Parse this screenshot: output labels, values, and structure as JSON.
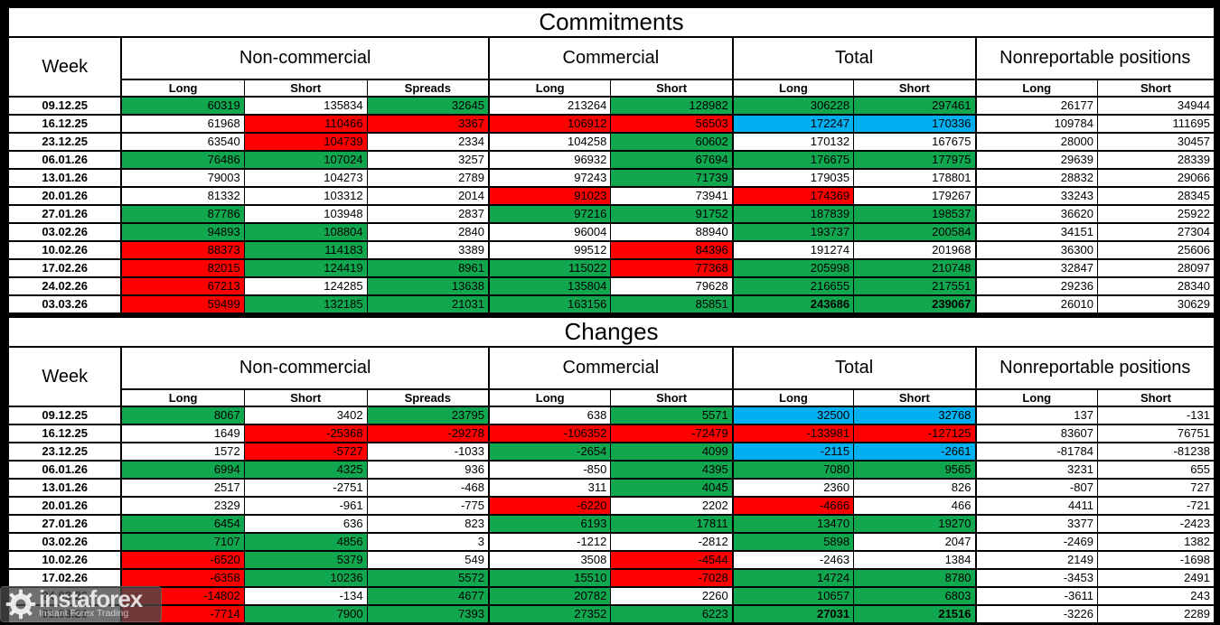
{
  "colors": {
    "g": "#10a74f",
    "r": "#fe0000",
    "b": "#00b0f0",
    "w": "#ffffff"
  },
  "watermark": {
    "brand": "instaforex",
    "tagline": "Instant Forex Trading",
    "icon": "gear-icon"
  },
  "tables": [
    {
      "title": "Commitments",
      "week_header": "Week",
      "groups": [
        {
          "label": "Non-commercial",
          "cols": [
            "Long",
            "Short",
            "Spreads"
          ]
        },
        {
          "label": "Commercial",
          "cols": [
            "Long",
            "Short"
          ]
        },
        {
          "label": "Total",
          "cols": [
            "Long",
            "Short"
          ]
        },
        {
          "label": "Nonreportable positions",
          "cols": [
            "Long",
            "Short"
          ]
        }
      ],
      "rows": [
        {
          "week": "09.12.25",
          "cells": [
            [
              "60319",
              "g"
            ],
            [
              "135834",
              "w"
            ],
            [
              "32645",
              "g"
            ],
            [
              "213264",
              "w"
            ],
            [
              "128982",
              "g"
            ],
            [
              "306228",
              "g"
            ],
            [
              "297461",
              "g"
            ],
            [
              "26177",
              "w"
            ],
            [
              "34944",
              "w"
            ]
          ]
        },
        {
          "week": "16.12.25",
          "cells": [
            [
              "61968",
              "w"
            ],
            [
              "110466",
              "r"
            ],
            [
              "3367",
              "r"
            ],
            [
              "106912",
              "r"
            ],
            [
              "56503",
              "r"
            ],
            [
              "172247",
              "b"
            ],
            [
              "170336",
              "b"
            ],
            [
              "109784",
              "w"
            ],
            [
              "111695",
              "w"
            ]
          ]
        },
        {
          "week": "23.12.25",
          "cells": [
            [
              "63540",
              "w"
            ],
            [
              "104739",
              "r"
            ],
            [
              "2334",
              "w"
            ],
            [
              "104258",
              "w"
            ],
            [
              "60602",
              "g"
            ],
            [
              "170132",
              "w"
            ],
            [
              "167675",
              "w"
            ],
            [
              "28000",
              "w"
            ],
            [
              "30457",
              "w"
            ]
          ]
        },
        {
          "week": "06.01.26",
          "cells": [
            [
              "76486",
              "g"
            ],
            [
              "107024",
              "g"
            ],
            [
              "3257",
              "w"
            ],
            [
              "96932",
              "w"
            ],
            [
              "67694",
              "g"
            ],
            [
              "176675",
              "g"
            ],
            [
              "177975",
              "g"
            ],
            [
              "29639",
              "w"
            ],
            [
              "28339",
              "w"
            ]
          ]
        },
        {
          "week": "13.01.26",
          "cells": [
            [
              "79003",
              "w"
            ],
            [
              "104273",
              "w"
            ],
            [
              "2789",
              "w"
            ],
            [
              "97243",
              "w"
            ],
            [
              "71739",
              "g"
            ],
            [
              "179035",
              "w"
            ],
            [
              "178801",
              "w"
            ],
            [
              "28832",
              "w"
            ],
            [
              "29066",
              "w"
            ]
          ]
        },
        {
          "week": "20.01.26",
          "cells": [
            [
              "81332",
              "w"
            ],
            [
              "103312",
              "w"
            ],
            [
              "2014",
              "w"
            ],
            [
              "91023",
              "r"
            ],
            [
              "73941",
              "w"
            ],
            [
              "174369",
              "r"
            ],
            [
              "179267",
              "w"
            ],
            [
              "33243",
              "w"
            ],
            [
              "28345",
              "w"
            ]
          ]
        },
        {
          "week": "27.01.26",
          "cells": [
            [
              "87786",
              "g"
            ],
            [
              "103948",
              "w"
            ],
            [
              "2837",
              "w"
            ],
            [
              "97216",
              "g"
            ],
            [
              "91752",
              "g"
            ],
            [
              "187839",
              "g"
            ],
            [
              "198537",
              "g"
            ],
            [
              "36620",
              "w"
            ],
            [
              "25922",
              "w"
            ]
          ]
        },
        {
          "week": "03.02.26",
          "cells": [
            [
              "94893",
              "g"
            ],
            [
              "108804",
              "g"
            ],
            [
              "2840",
              "w"
            ],
            [
              "96004",
              "w"
            ],
            [
              "88940",
              "w"
            ],
            [
              "193737",
              "g"
            ],
            [
              "200584",
              "g"
            ],
            [
              "34151",
              "w"
            ],
            [
              "27304",
              "w"
            ]
          ]
        },
        {
          "week": "10.02.26",
          "cells": [
            [
              "88373",
              "r"
            ],
            [
              "114183",
              "g"
            ],
            [
              "3389",
              "w"
            ],
            [
              "99512",
              "w"
            ],
            [
              "84396",
              "r"
            ],
            [
              "191274",
              "w"
            ],
            [
              "201968",
              "w"
            ],
            [
              "36300",
              "w"
            ],
            [
              "25606",
              "w"
            ]
          ]
        },
        {
          "week": "17.02.26",
          "cells": [
            [
              "82015",
              "r"
            ],
            [
              "124419",
              "g"
            ],
            [
              "8961",
              "g"
            ],
            [
              "115022",
              "g"
            ],
            [
              "77368",
              "r"
            ],
            [
              "205998",
              "g"
            ],
            [
              "210748",
              "g"
            ],
            [
              "32847",
              "w"
            ],
            [
              "28097",
              "w"
            ]
          ]
        },
        {
          "week": "24.02.26",
          "cells": [
            [
              "67213",
              "r"
            ],
            [
              "124285",
              "w"
            ],
            [
              "13638",
              "g"
            ],
            [
              "135804",
              "g"
            ],
            [
              "79628",
              "w"
            ],
            [
              "216655",
              "g"
            ],
            [
              "217551",
              "g"
            ],
            [
              "29236",
              "w"
            ],
            [
              "28340",
              "w"
            ]
          ]
        },
        {
          "week": "03.03.26",
          "cells": [
            [
              "59499",
              "r"
            ],
            [
              "132185",
              "g"
            ],
            [
              "21031",
              "g"
            ],
            [
              "163156",
              "g"
            ],
            [
              "85851",
              "g"
            ],
            [
              "243686",
              "g",
              true
            ],
            [
              "239067",
              "g",
              true
            ],
            [
              "26010",
              "w"
            ],
            [
              "30629",
              "w"
            ]
          ]
        }
      ]
    },
    {
      "title": "Changes",
      "week_header": "Week",
      "groups": [
        {
          "label": "Non-commercial",
          "cols": [
            "Long",
            "Short",
            "Spreads"
          ]
        },
        {
          "label": "Commercial",
          "cols": [
            "Long",
            "Short"
          ]
        },
        {
          "label": "Total",
          "cols": [
            "Long",
            "Short"
          ]
        },
        {
          "label": "Nonreportable positions",
          "cols": [
            "Long",
            "Short"
          ]
        }
      ],
      "rows": [
        {
          "week": "09.12.25",
          "cells": [
            [
              "8067",
              "g"
            ],
            [
              "3402",
              "w"
            ],
            [
              "23795",
              "g"
            ],
            [
              "638",
              "w"
            ],
            [
              "5571",
              "g"
            ],
            [
              "32500",
              "b"
            ],
            [
              "32768",
              "b"
            ],
            [
              "137",
              "w"
            ],
            [
              "-131",
              "w"
            ]
          ]
        },
        {
          "week": "16.12.25",
          "cells": [
            [
              "1649",
              "w"
            ],
            [
              "-25368",
              "r"
            ],
            [
              "-29278",
              "r"
            ],
            [
              "-106352",
              "r"
            ],
            [
              "-72479",
              "r"
            ],
            [
              "-133981",
              "r"
            ],
            [
              "-127125",
              "r"
            ],
            [
              "83607",
              "w"
            ],
            [
              "76751",
              "w"
            ]
          ]
        },
        {
          "week": "23.12.25",
          "cells": [
            [
              "1572",
              "w"
            ],
            [
              "-5727",
              "r"
            ],
            [
              "-1033",
              "w"
            ],
            [
              "-2654",
              "g"
            ],
            [
              "4099",
              "g"
            ],
            [
              "-2115",
              "b"
            ],
            [
              "-2661",
              "b"
            ],
            [
              "-81784",
              "w"
            ],
            [
              "-81238",
              "w"
            ]
          ]
        },
        {
          "week": "06.01.26",
          "cells": [
            [
              "6994",
              "g"
            ],
            [
              "4325",
              "g"
            ],
            [
              "936",
              "w"
            ],
            [
              "-850",
              "w"
            ],
            [
              "4395",
              "g"
            ],
            [
              "7080",
              "g"
            ],
            [
              "9565",
              "g"
            ],
            [
              "3231",
              "w"
            ],
            [
              "655",
              "w"
            ]
          ]
        },
        {
          "week": "13.01.26",
          "cells": [
            [
              "2517",
              "w"
            ],
            [
              "-2751",
              "w"
            ],
            [
              "-468",
              "w"
            ],
            [
              "311",
              "w"
            ],
            [
              "4045",
              "g"
            ],
            [
              "2360",
              "w"
            ],
            [
              "826",
              "w"
            ],
            [
              "-807",
              "w"
            ],
            [
              "727",
              "w"
            ]
          ]
        },
        {
          "week": "20.01.26",
          "cells": [
            [
              "2329",
              "w"
            ],
            [
              "-961",
              "w"
            ],
            [
              "-775",
              "w"
            ],
            [
              "-6220",
              "r"
            ],
            [
              "2202",
              "w"
            ],
            [
              "-4666",
              "r"
            ],
            [
              "466",
              "w"
            ],
            [
              "4411",
              "w"
            ],
            [
              "-721",
              "w"
            ]
          ]
        },
        {
          "week": "27.01.26",
          "cells": [
            [
              "6454",
              "g"
            ],
            [
              "636",
              "w"
            ],
            [
              "823",
              "w"
            ],
            [
              "6193",
              "g"
            ],
            [
              "17811",
              "g"
            ],
            [
              "13470",
              "g"
            ],
            [
              "19270",
              "g"
            ],
            [
              "3377",
              "w"
            ],
            [
              "-2423",
              "w"
            ]
          ]
        },
        {
          "week": "03.02.26",
          "cells": [
            [
              "7107",
              "g"
            ],
            [
              "4856",
              "g"
            ],
            [
              "3",
              "w"
            ],
            [
              "-1212",
              "w"
            ],
            [
              "-2812",
              "w"
            ],
            [
              "5898",
              "g"
            ],
            [
              "2047",
              "w"
            ],
            [
              "-2469",
              "w"
            ],
            [
              "1382",
              "w"
            ]
          ]
        },
        {
          "week": "10.02.26",
          "cells": [
            [
              "-6520",
              "r"
            ],
            [
              "5379",
              "g"
            ],
            [
              "549",
              "w"
            ],
            [
              "3508",
              "w"
            ],
            [
              "-4544",
              "r"
            ],
            [
              "-2463",
              "w"
            ],
            [
              "1384",
              "w"
            ],
            [
              "2149",
              "w"
            ],
            [
              "-1698",
              "w"
            ]
          ]
        },
        {
          "week": "17.02.26",
          "cells": [
            [
              "-6358",
              "r"
            ],
            [
              "10236",
              "g"
            ],
            [
              "5572",
              "g"
            ],
            [
              "15510",
              "g"
            ],
            [
              "-7028",
              "r"
            ],
            [
              "14724",
              "g"
            ],
            [
              "8780",
              "g"
            ],
            [
              "-3453",
              "w"
            ],
            [
              "2491",
              "w"
            ]
          ]
        },
        {
          "week": "24.02.26",
          "cells": [
            [
              "-14802",
              "r"
            ],
            [
              "-134",
              "w"
            ],
            [
              "4677",
              "g"
            ],
            [
              "20782",
              "g"
            ],
            [
              "2260",
              "w"
            ],
            [
              "10657",
              "g"
            ],
            [
              "6803",
              "g"
            ],
            [
              "-3611",
              "w"
            ],
            [
              "243",
              "w"
            ]
          ]
        },
        {
          "week": "03.03.26",
          "cells": [
            [
              "-7714",
              "r"
            ],
            [
              "7900",
              "g"
            ],
            [
              "7393",
              "g"
            ],
            [
              "27352",
              "g"
            ],
            [
              "6223",
              "g"
            ],
            [
              "27031",
              "g",
              true
            ],
            [
              "21516",
              "g",
              true
            ],
            [
              "-3226",
              "w"
            ],
            [
              "2289",
              "w"
            ]
          ]
        }
      ]
    }
  ]
}
